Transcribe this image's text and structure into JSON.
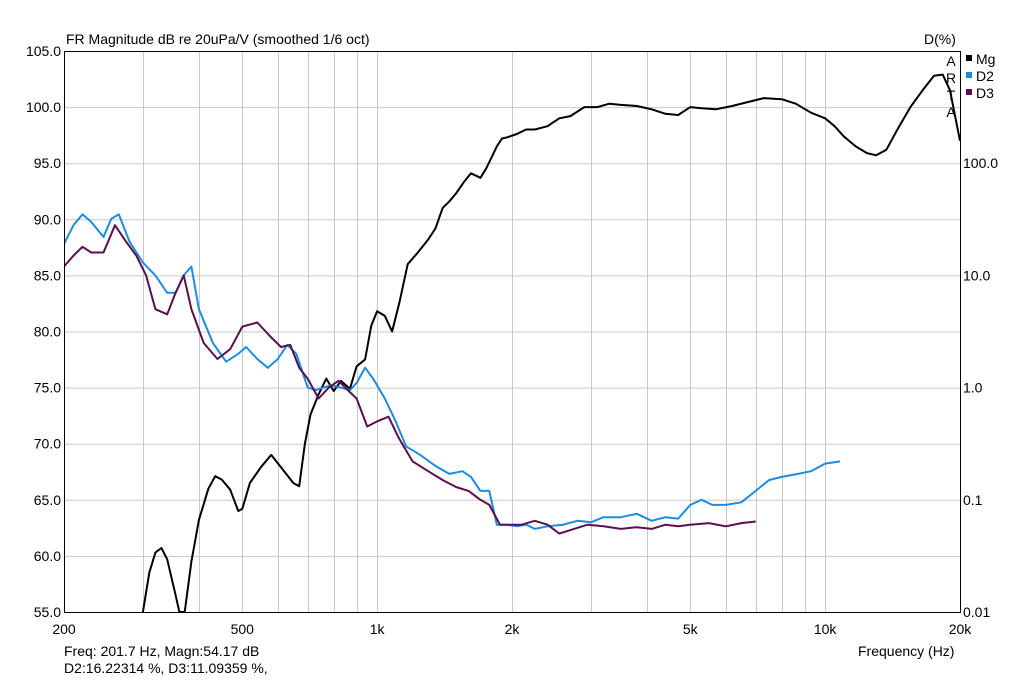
{
  "header": {
    "title": "FR Magnitude dB re 20uPa/V (smoothed 1/6 oct)",
    "right_axis_title": "D(%)",
    "watermark": [
      "A",
      "R",
      "T",
      "A"
    ]
  },
  "footer": {
    "cursor_line1": "Freq: 201.7 Hz, Magn:54.17 dB",
    "cursor_line2": "D2:16.22314 %, D3:11.09359 %,",
    "xlabel": "Frequency (Hz)"
  },
  "colors": {
    "Mg": "#000000",
    "D2": "#1e8be0",
    "D3": "#5a1050",
    "grid": "#c8c8c8",
    "frame": "#000000"
  },
  "chart_data": {
    "type": "line",
    "title": "FR Magnitude dB re 20uPa/V (smoothed 1/6 oct)",
    "xlabel": "Frequency (Hz)",
    "ylabel": "",
    "x_scale": "log",
    "xlim": [
      200,
      20000
    ],
    "ylim": [
      55,
      105
    ],
    "y2lim": [
      0.01,
      1000
    ],
    "y2_scale": "log",
    "y2label": "D(%)",
    "grid": true,
    "legend": "top-right",
    "xticks": [
      200,
      500,
      1000,
      2000,
      5000,
      10000,
      20000
    ],
    "xtick_labels": [
      "200",
      "500",
      "1k",
      "2k",
      "5k",
      "10k",
      "20k"
    ],
    "yticks": [
      55,
      60,
      65,
      70,
      75,
      80,
      85,
      90,
      95,
      100,
      105
    ],
    "ytick_labels": [
      "55.0",
      "60.0",
      "65.0",
      "70.0",
      "75.0",
      "80.0",
      "85.0",
      "90.0",
      "95.0",
      "100.0",
      "105.0"
    ],
    "y2ticks": [
      0.01,
      0.1,
      1,
      10,
      100
    ],
    "y2tick_labels": [
      "0.01",
      "0.1",
      "1.0",
      "10.0",
      "100.0"
    ],
    "series": [
      {
        "name": "Mg",
        "axis": "left",
        "points": [
          [
            300,
            55
          ],
          [
            310,
            58.5
          ],
          [
            320,
            60.3
          ],
          [
            330,
            60.7
          ],
          [
            340,
            59.7
          ],
          [
            355,
            56.5
          ],
          [
            362,
            55
          ],
          [
            372,
            55
          ],
          [
            385,
            59.5
          ],
          [
            400,
            63.2
          ],
          [
            420,
            66
          ],
          [
            435,
            67.1
          ],
          [
            450,
            66.8
          ],
          [
            470,
            65.9
          ],
          [
            490,
            64
          ],
          [
            500,
            64.2
          ],
          [
            520,
            66.5
          ],
          [
            550,
            67.9
          ],
          [
            580,
            69
          ],
          [
            610,
            67.9
          ],
          [
            650,
            66.5
          ],
          [
            670,
            66.2
          ],
          [
            690,
            70
          ],
          [
            710,
            72.6
          ],
          [
            740,
            74.4
          ],
          [
            770,
            75.8
          ],
          [
            800,
            74.7
          ],
          [
            830,
            75.6
          ],
          [
            870,
            74.9
          ],
          [
            900,
            76.9
          ],
          [
            940,
            77.5
          ],
          [
            970,
            80.5
          ],
          [
            1000,
            81.8
          ],
          [
            1040,
            81.4
          ],
          [
            1080,
            80
          ],
          [
            1120,
            82.5
          ],
          [
            1170,
            86
          ],
          [
            1230,
            87
          ],
          [
            1300,
            88.2
          ],
          [
            1350,
            89.2
          ],
          [
            1400,
            91
          ],
          [
            1450,
            91.6
          ],
          [
            1500,
            92.3
          ],
          [
            1560,
            93.3
          ],
          [
            1620,
            94.1
          ],
          [
            1700,
            93.7
          ],
          [
            1750,
            94.5
          ],
          [
            1800,
            95.5
          ],
          [
            1850,
            96.5
          ],
          [
            1900,
            97.2
          ],
          [
            1950,
            97.3
          ],
          [
            2050,
            97.6
          ],
          [
            2150,
            98
          ],
          [
            2250,
            98
          ],
          [
            2400,
            98.3
          ],
          [
            2550,
            99
          ],
          [
            2700,
            99.2
          ],
          [
            2900,
            100
          ],
          [
            3100,
            100
          ],
          [
            3300,
            100.3
          ],
          [
            3500,
            100.2
          ],
          [
            3800,
            100.1
          ],
          [
            4100,
            99.8
          ],
          [
            4400,
            99.4
          ],
          [
            4700,
            99.3
          ],
          [
            5000,
            100
          ],
          [
            5300,
            99.9
          ],
          [
            5700,
            99.8
          ],
          [
            6200,
            100.1
          ],
          [
            6800,
            100.5
          ],
          [
            7300,
            100.8
          ],
          [
            8000,
            100.7
          ],
          [
            8600,
            100.3
          ],
          [
            9300,
            99.5
          ],
          [
            10000,
            99
          ],
          [
            10500,
            98.3
          ],
          [
            11000,
            97.4
          ],
          [
            11700,
            96.5
          ],
          [
            12400,
            95.9
          ],
          [
            13000,
            95.7
          ],
          [
            13700,
            96.2
          ],
          [
            14500,
            98
          ],
          [
            15500,
            100
          ],
          [
            16500,
            101.5
          ],
          [
            17500,
            102.8
          ],
          [
            18300,
            102.9
          ],
          [
            19000,
            101.5
          ],
          [
            20000,
            97
          ]
        ]
      },
      {
        "name": "D2",
        "axis": "right",
        "points": [
          [
            200,
            19
          ],
          [
            210,
            28
          ],
          [
            220,
            35
          ],
          [
            230,
            30
          ],
          [
            245,
            22
          ],
          [
            255,
            32
          ],
          [
            265,
            35
          ],
          [
            280,
            20
          ],
          [
            300,
            13
          ],
          [
            320,
            10
          ],
          [
            340,
            7
          ],
          [
            355,
            7
          ],
          [
            370,
            10
          ],
          [
            385,
            12
          ],
          [
            400,
            5
          ],
          [
            430,
            2.5
          ],
          [
            460,
            1.7
          ],
          [
            490,
            2
          ],
          [
            510,
            2.3
          ],
          [
            540,
            1.8
          ],
          [
            570,
            1.5
          ],
          [
            600,
            1.8
          ],
          [
            630,
            2.4
          ],
          [
            660,
            2
          ],
          [
            700,
            1
          ],
          [
            730,
            0.95
          ],
          [
            760,
            1
          ],
          [
            790,
            1.05
          ],
          [
            830,
            1
          ],
          [
            870,
            0.95
          ],
          [
            900,
            1.1
          ],
          [
            940,
            1.5
          ],
          [
            980,
            1.2
          ],
          [
            1040,
            0.8
          ],
          [
            1100,
            0.5
          ],
          [
            1160,
            0.3
          ],
          [
            1250,
            0.25
          ],
          [
            1350,
            0.2
          ],
          [
            1450,
            0.17
          ],
          [
            1550,
            0.18
          ],
          [
            1620,
            0.16
          ],
          [
            1700,
            0.12
          ],
          [
            1780,
            0.12
          ],
          [
            1850,
            0.06
          ],
          [
            1950,
            0.06
          ],
          [
            2050,
            0.058
          ],
          [
            2150,
            0.06
          ],
          [
            2250,
            0.055
          ],
          [
            2400,
            0.058
          ],
          [
            2600,
            0.06
          ],
          [
            2800,
            0.065
          ],
          [
            3000,
            0.063
          ],
          [
            3200,
            0.07
          ],
          [
            3500,
            0.07
          ],
          [
            3800,
            0.075
          ],
          [
            4100,
            0.065
          ],
          [
            4400,
            0.07
          ],
          [
            4700,
            0.068
          ],
          [
            5000,
            0.09
          ],
          [
            5300,
            0.1
          ],
          [
            5600,
            0.09
          ],
          [
            6000,
            0.09
          ],
          [
            6500,
            0.095
          ],
          [
            7000,
            0.12
          ],
          [
            7500,
            0.15
          ],
          [
            8000,
            0.16
          ],
          [
            8700,
            0.17
          ],
          [
            9300,
            0.18
          ],
          [
            10000,
            0.21
          ],
          [
            10800,
            0.22
          ]
        ]
      },
      {
        "name": "D3",
        "axis": "right",
        "points": [
          [
            200,
            12
          ],
          [
            210,
            15
          ],
          [
            220,
            18
          ],
          [
            230,
            16
          ],
          [
            245,
            16
          ],
          [
            260,
            28
          ],
          [
            275,
            20
          ],
          [
            290,
            15
          ],
          [
            305,
            10
          ],
          [
            320,
            5
          ],
          [
            340,
            4.5
          ],
          [
            355,
            7
          ],
          [
            370,
            10
          ],
          [
            385,
            5
          ],
          [
            410,
            2.5
          ],
          [
            440,
            1.8
          ],
          [
            470,
            2.2
          ],
          [
            500,
            3.5
          ],
          [
            540,
            3.8
          ],
          [
            580,
            2.8
          ],
          [
            610,
            2.3
          ],
          [
            640,
            2.4
          ],
          [
            670,
            1.5
          ],
          [
            700,
            1.2
          ],
          [
            740,
            0.8
          ],
          [
            780,
            1
          ],
          [
            820,
            1.15
          ],
          [
            860,
            0.95
          ],
          [
            900,
            0.8
          ],
          [
            950,
            0.45
          ],
          [
            1000,
            0.5
          ],
          [
            1060,
            0.55
          ],
          [
            1120,
            0.35
          ],
          [
            1200,
            0.22
          ],
          [
            1300,
            0.18
          ],
          [
            1400,
            0.15
          ],
          [
            1500,
            0.13
          ],
          [
            1600,
            0.12
          ],
          [
            1700,
            0.1
          ],
          [
            1780,
            0.09
          ],
          [
            1880,
            0.06
          ],
          [
            1980,
            0.06
          ],
          [
            2100,
            0.06
          ],
          [
            2250,
            0.065
          ],
          [
            2400,
            0.06
          ],
          [
            2550,
            0.05
          ],
          [
            2750,
            0.055
          ],
          [
            2950,
            0.06
          ],
          [
            3200,
            0.058
          ],
          [
            3500,
            0.055
          ],
          [
            3800,
            0.057
          ],
          [
            4100,
            0.055
          ],
          [
            4400,
            0.06
          ],
          [
            4700,
            0.058
          ],
          [
            5000,
            0.06
          ],
          [
            5500,
            0.062
          ],
          [
            6000,
            0.058
          ],
          [
            6500,
            0.062
          ],
          [
            7000,
            0.064
          ]
        ]
      }
    ]
  }
}
